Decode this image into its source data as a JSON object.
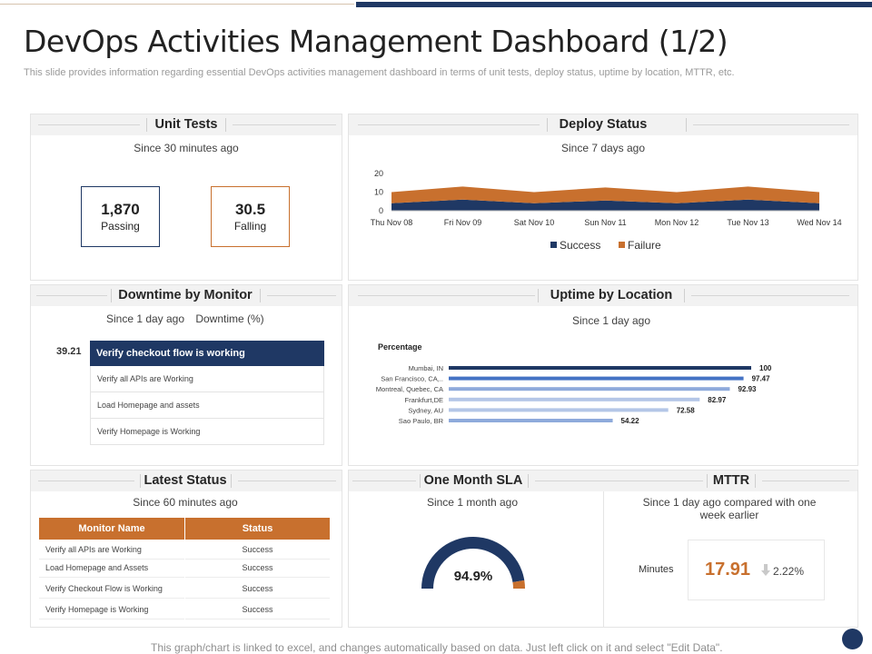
{
  "title": "DevOps Activities Management Dashboard (1/2)",
  "subtitle": "This slide provides information regarding essential DevOps activities management dashboard in terms of unit tests, deploy status, uptime by location, MTTR,  etc.",
  "footer": "This graph/chart is linked to excel, and changes automatically based on data. Just left click on it and select \"Edit Data\".",
  "colors": {
    "navy": "#1f3864",
    "orange": "#c8702e",
    "light_blue": "#8eaadb",
    "pale_blue": "#b4c6e7"
  },
  "unit_tests": {
    "title": "Unit Tests",
    "since": "Since 30 minutes ago",
    "passing_value": "1,870",
    "passing_label": "Passing",
    "failing_value": "30.5",
    "failing_label": "Falling"
  },
  "deploy_status": {
    "title": "Deploy Status",
    "since": "Since 7 days ago"
  },
  "downtime": {
    "title": "Downtime by Monitor",
    "since": "Since 1 day ago",
    "unit": "Downtime (%)",
    "value": "39.21",
    "items": [
      "Verify checkout flow is working",
      "Verify all APIs are Working",
      "Load Homepage and assets",
      "Verify Homepage is Working"
    ]
  },
  "uptime": {
    "title": "Uptime by Location",
    "since": "Since 1 day ago"
  },
  "latest_status": {
    "title": "Latest Status",
    "since": "Since 60 minutes ago",
    "headers": [
      "Monitor Name",
      "Status"
    ],
    "rows": [
      [
        "Verify all APIs are Working",
        "Success"
      ],
      [
        "Load Homepage and Assets",
        "Success"
      ],
      [
        "Verify Checkout Flow is Working",
        "Success"
      ],
      [
        "Verify Homepage is Working",
        "Success"
      ]
    ]
  },
  "sla": {
    "title": "One Month SLA",
    "since": "Since 1 month ago"
  },
  "mttr": {
    "title": "MTTR",
    "since": "Since 1 day ago compared with one week earlier",
    "label": "Minutes",
    "value": "17.91",
    "arrow": "down-arrow-icon",
    "change": "2.22%"
  },
  "chart_data": [
    {
      "type": "area",
      "x": [
        "Thu Nov 08",
        "Fri Nov 09",
        "Sat Nov 10",
        "Sun Nov 11",
        "Mon Nov 12",
        "Tue Nov 13",
        "Wed Nov 14"
      ],
      "series": [
        {
          "name": "Success",
          "color": "#1f3864",
          "values": [
            4,
            6,
            4,
            5.5,
            4,
            6,
            4
          ]
        },
        {
          "name": "Failure",
          "color": "#c8702e",
          "values": [
            6,
            7,
            6,
            7,
            6,
            7,
            6
          ]
        }
      ],
      "stacked": true,
      "ylim": [
        0,
        20
      ],
      "yticks": [
        0,
        10,
        20
      ],
      "legend": "bottom"
    },
    {
      "type": "bar",
      "orientation": "horizontal",
      "ylabel": "Percentage",
      "categories": [
        "Mumbai, IN",
        "San Francisco, CA,..",
        "Montreal, Quebec, CA",
        "Frankfurt,DE",
        "Sydney, AU",
        "Sao Paulo, BR"
      ],
      "values": [
        100,
        97.47,
        92.93,
        82.97,
        72.58,
        54.22
      ],
      "value_labels": [
        "100",
        "97.47",
        "92.93",
        "82.97",
        "72.58",
        "54.22"
      ],
      "colors": [
        "#1f3864",
        "#4472c4",
        "#8eaadb",
        "#b4c6e7",
        "#b4c6e7",
        "#8eaadb"
      ],
      "xlim": [
        0,
        100
      ]
    },
    {
      "type": "pie",
      "style": "semi-donut gauge",
      "values": [
        94.9,
        5.1
      ],
      "colors": [
        "#1f3864",
        "#c8702e"
      ],
      "center_label": "94.9%"
    }
  ]
}
